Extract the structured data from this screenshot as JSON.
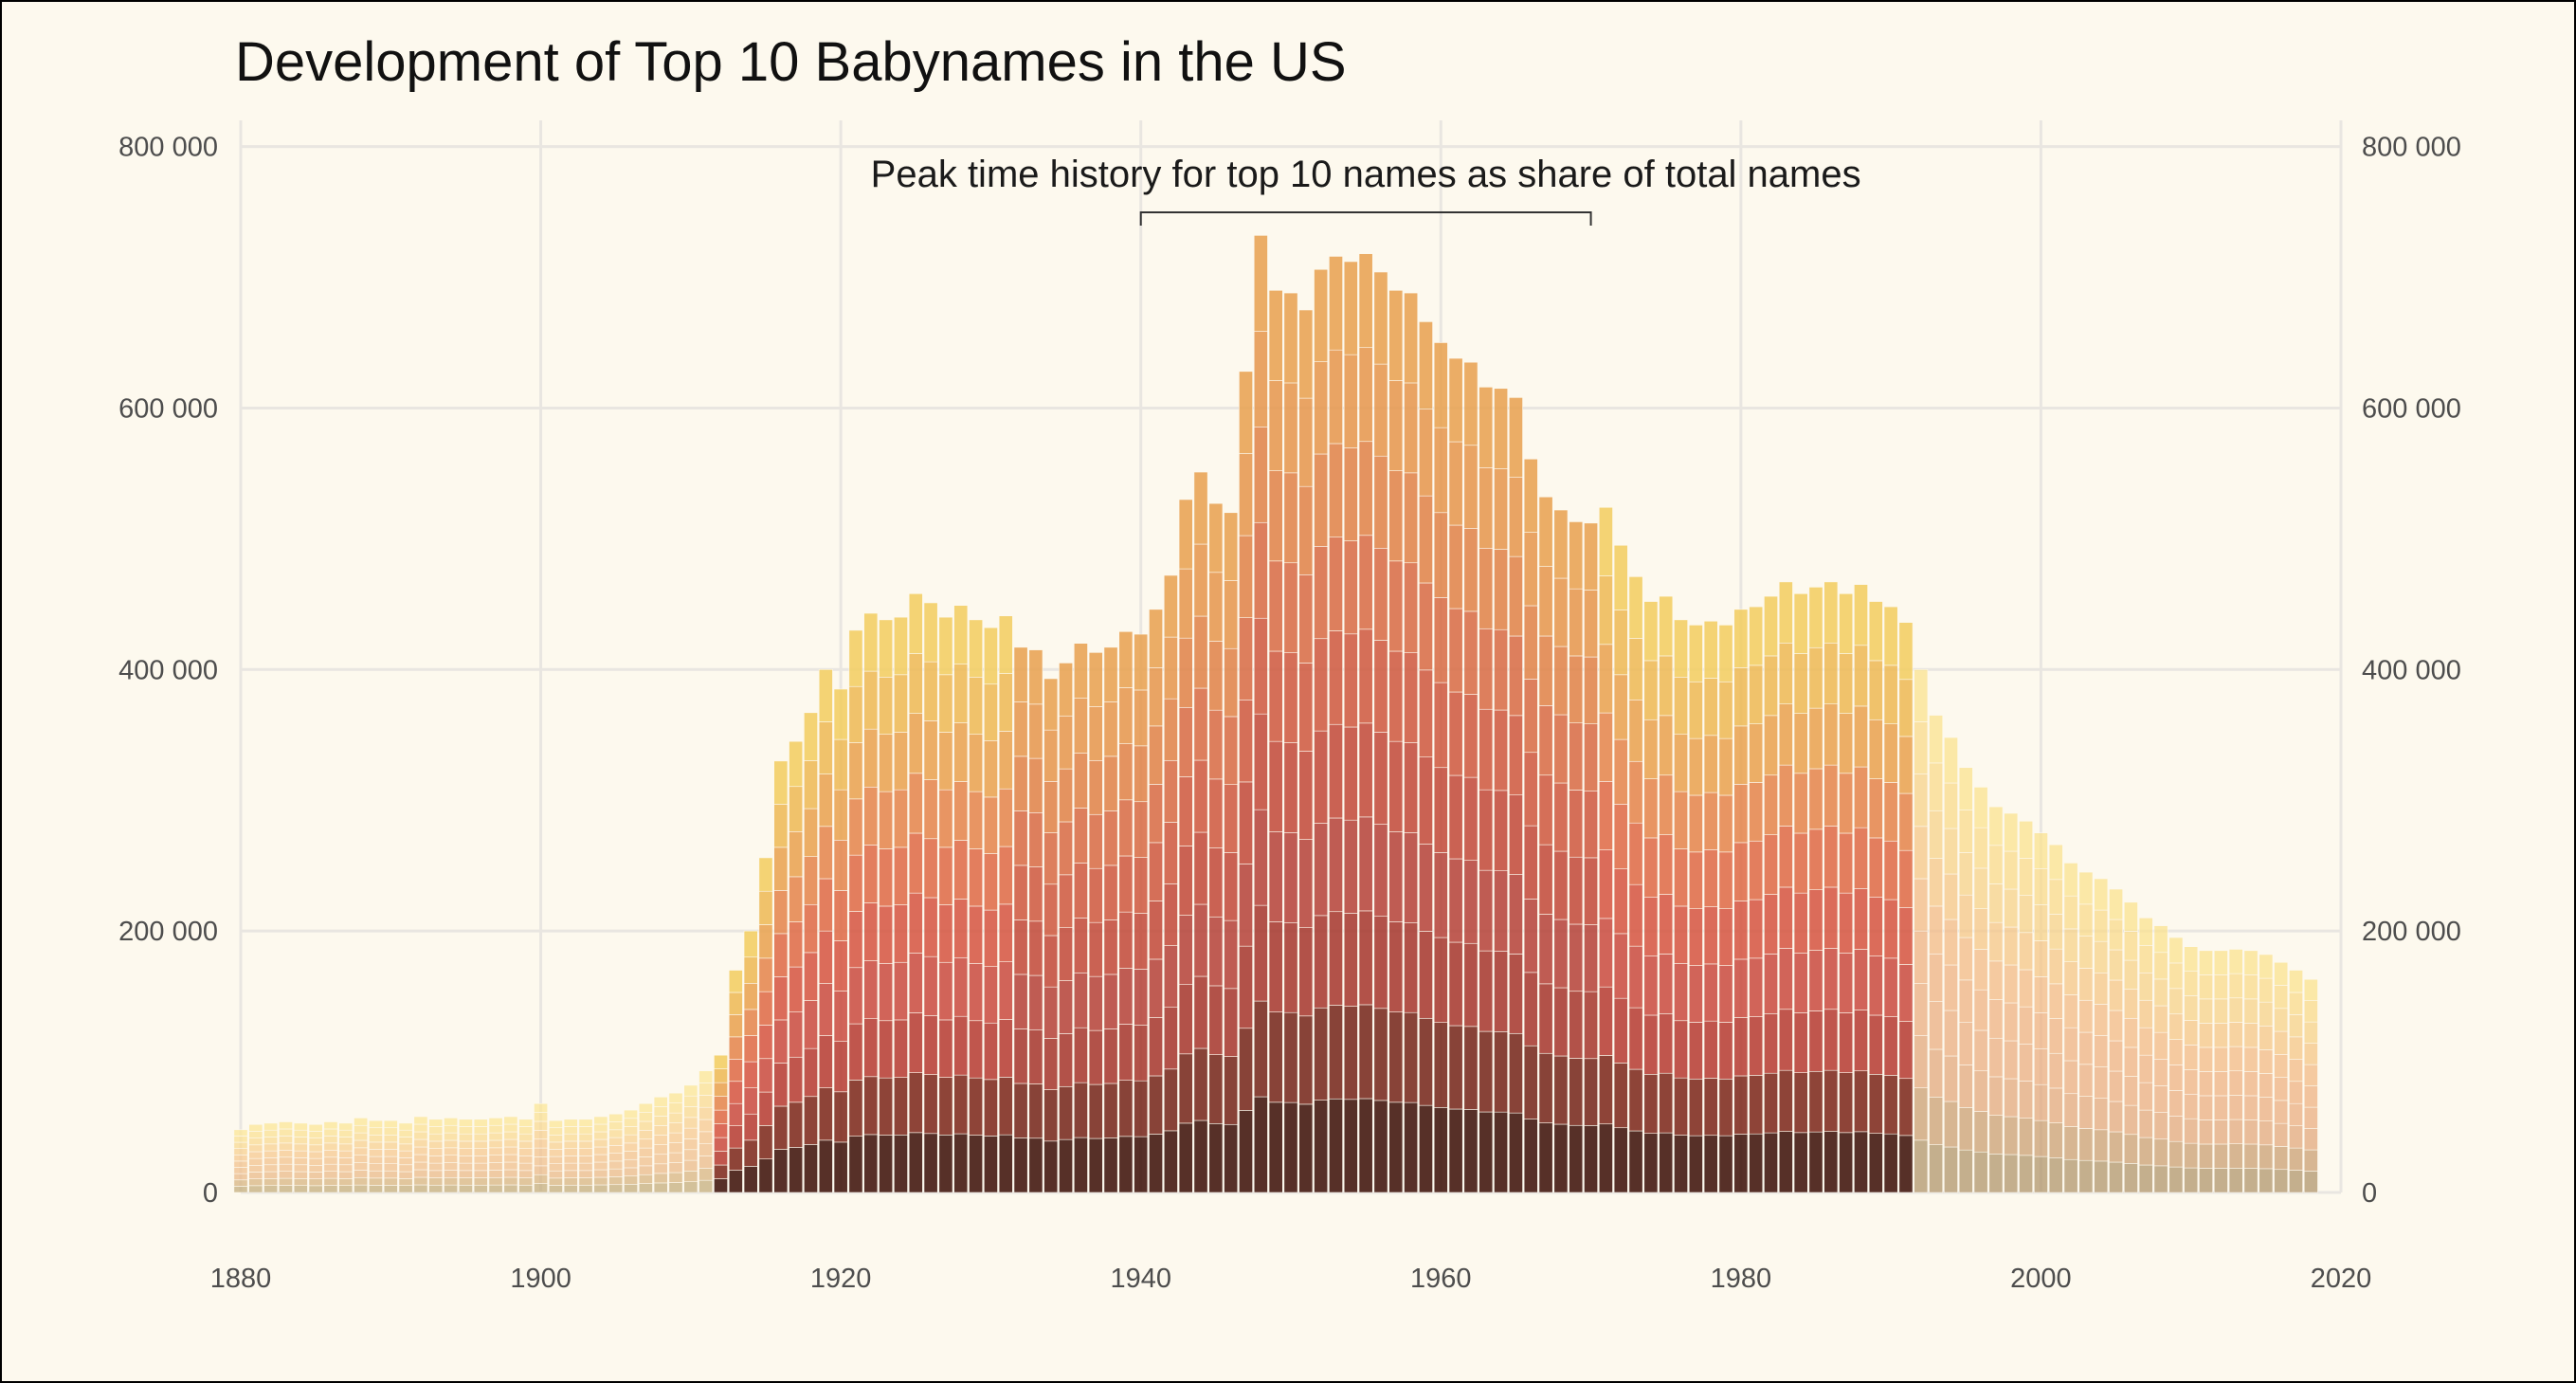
{
  "chart_data": {
    "type": "bar",
    "title": "Development of Top 10 Babynames in the US",
    "xlabel": "",
    "ylabel": "",
    "xlim": [
      1880,
      2020
    ],
    "ylim": [
      0,
      820000
    ],
    "x_ticks": [
      1880,
      1900,
      1920,
      1940,
      1960,
      1980,
      2000,
      2020
    ],
    "x_tick_labels": [
      "1880",
      "1900",
      "1920",
      "1940",
      "1960",
      "1980",
      "2000",
      "2020"
    ],
    "y_ticks": [
      0,
      200000,
      400000,
      600000,
      800000
    ],
    "y_tick_labels": [
      "0",
      "200 000",
      "400 000",
      "600 000",
      "800 000"
    ],
    "grid": true,
    "stacked": true,
    "annotation": {
      "text": "Peak time history for top 10 names as share of total names",
      "bracket_start": 1940,
      "bracket_end": 1970
    },
    "years_start": 1880,
    "totals": [
      48000,
      52000,
      53000,
      54000,
      53000,
      52000,
      54000,
      53000,
      57000,
      55000,
      55000,
      53000,
      58000,
      56000,
      57000,
      56000,
      56000,
      57000,
      58000,
      56000,
      68000,
      55000,
      56000,
      56000,
      58000,
      60000,
      63000,
      68000,
      73000,
      76000,
      82000,
      93000,
      105000,
      170000,
      200000,
      256000,
      330000,
      345000,
      367000,
      400000,
      385000,
      430000,
      443000,
      438000,
      440000,
      458000,
      451000,
      440000,
      449000,
      438000,
      432000,
      441000,
      417000,
      415000,
      393000,
      405000,
      420000,
      413000,
      417000,
      429000,
      427000,
      446000,
      472000,
      530000,
      551000,
      527000,
      520000,
      628000,
      732000,
      690000,
      688000,
      675000,
      706000,
      716000,
      712000,
      718000,
      704000,
      690000,
      688000,
      666000,
      650000,
      638000,
      635000,
      616000,
      615000,
      608000,
      561000,
      532000,
      522000,
      513000,
      512000,
      524000,
      495000,
      471000,
      452000,
      456000,
      438000,
      434000,
      437000,
      434000,
      446000,
      448000,
      456000,
      467000,
      458000,
      463000,
      467000,
      458000,
      465000,
      452000,
      448000,
      436000,
      400000,
      365000,
      348000,
      325000,
      310000,
      295000,
      290000,
      284000,
      275000,
      266000,
      252000,
      245000,
      240000,
      232000,
      222000,
      210000,
      204000,
      195000,
      188000,
      185000,
      185000,
      186000,
      185000,
      182000,
      176000,
      170000,
      163000
    ],
    "bands": [
      {
        "share": 0.1,
        "from": "#3a0d05",
        "to": "#1a1405",
        "peak": true
      },
      {
        "share": 0.1,
        "from": "#7a2418",
        "to": "#3f1712",
        "peak": true
      },
      {
        "share": 0.1,
        "from": "#b53a30",
        "to": "#6b2520",
        "peak": true
      },
      {
        "share": 0.1,
        "from": "#c94a3e",
        "to": "#8b2f28",
        "peak": true
      },
      {
        "share": 0.1,
        "from": "#d5543f",
        "to": "#a83a2e",
        "peak": true
      },
      {
        "share": 0.1,
        "from": "#de6844",
        "to": "#c24a38",
        "peak": true
      },
      {
        "share": 0.1,
        "from": "#e4844a",
        "to": "#d05d3f",
        "peak": true
      },
      {
        "share": 0.1,
        "from": "#e9a14e",
        "to": "#dc7844",
        "peak": true
      },
      {
        "share": 0.1,
        "from": "#edb854",
        "to": "#e4914a",
        "peak": true
      },
      {
        "share": 0.1,
        "from": "#f2cc5e",
        "to": "#e8a04e",
        "peak": true
      }
    ]
  }
}
